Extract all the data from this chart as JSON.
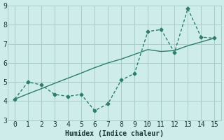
{
  "line1_x": [
    0,
    1,
    2,
    3,
    4,
    5,
    6,
    7,
    8,
    9,
    10,
    11,
    12,
    13,
    14,
    15
  ],
  "line1_y": [
    4.1,
    5.0,
    4.85,
    4.35,
    4.25,
    4.35,
    3.5,
    3.85,
    5.1,
    5.45,
    7.65,
    7.75,
    6.55,
    8.85,
    7.35,
    7.3
  ],
  "line2_x": [
    0,
    1,
    2,
    3,
    4,
    5,
    6,
    7,
    8,
    9,
    10,
    11,
    12,
    13,
    14,
    15
  ],
  "line2_y": [
    4.1,
    4.38,
    4.65,
    4.93,
    5.2,
    5.47,
    5.75,
    6.0,
    6.2,
    6.45,
    6.7,
    6.6,
    6.65,
    6.9,
    7.1,
    7.3
  ],
  "color": "#2e7d6e",
  "bg_color": "#ceecea",
  "grid_color": "#a8ceca",
  "xlabel": "Humidex (Indice chaleur)",
  "ylim": [
    3,
    9
  ],
  "xlim": [
    -0.5,
    15.5
  ],
  "yticks": [
    3,
    4,
    5,
    6,
    7,
    8,
    9
  ],
  "xticks": [
    0,
    1,
    2,
    3,
    4,
    5,
    6,
    7,
    8,
    9,
    10,
    11,
    12,
    13,
    14,
    15
  ],
  "font_size": 7,
  "marker": "D",
  "marker_size": 2.5,
  "linewidth": 1.0
}
